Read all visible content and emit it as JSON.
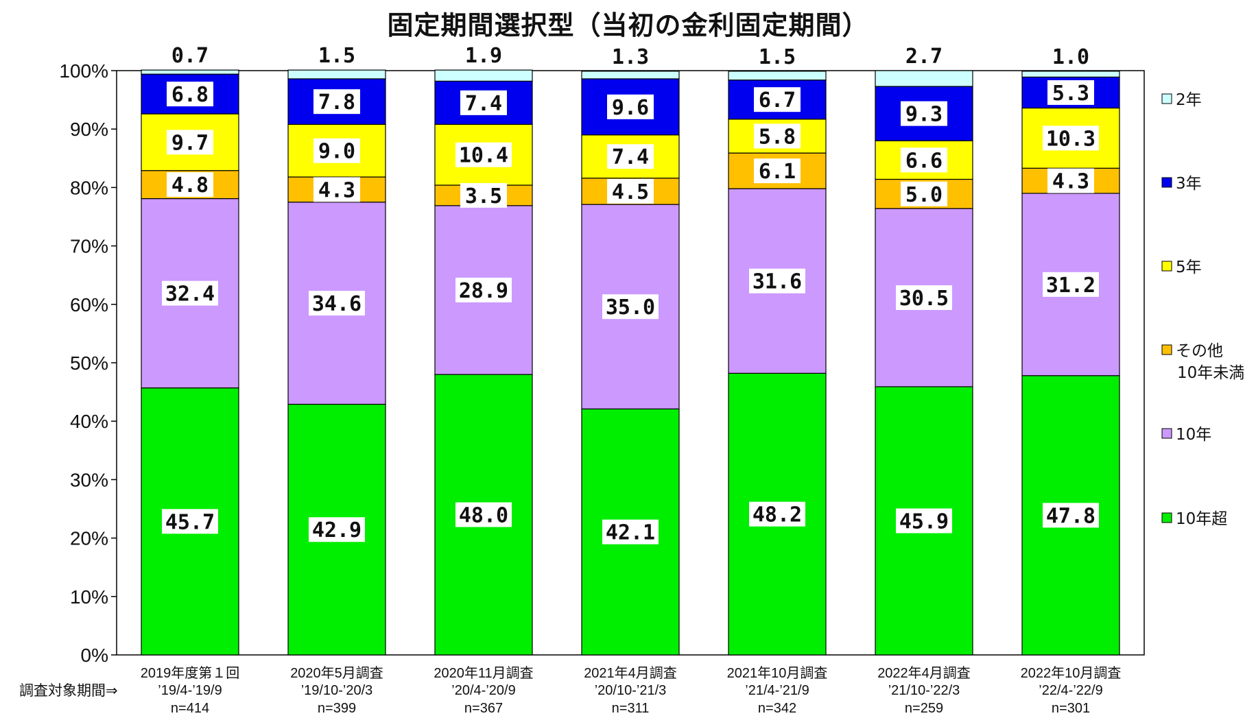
{
  "chart_data": {
    "type": "bar",
    "stacked": true,
    "title": "固定期間選択型（当初の金利固定期間）",
    "period_caption": "調査対象期間⇒",
    "y_tick_labels": [
      "0%",
      "10%",
      "20%",
      "30%",
      "40%",
      "50%",
      "60%",
      "70%",
      "80%",
      "90%",
      "100%"
    ],
    "ylim": [
      0,
      100
    ],
    "grid": false,
    "legend_position": "right",
    "categories": [
      {
        "name": "2019年度第１回",
        "period": "’19/4-’19/9",
        "n": "n=414"
      },
      {
        "name": "2020年5月調査",
        "period": "’19/10-’20/3",
        "n": "n=399"
      },
      {
        "name": "2020年11月調査",
        "period": "’20/4-’20/9",
        "n": "n=367"
      },
      {
        "name": "2021年4月調査",
        "period": "’20/10-’21/3",
        "n": "n=311"
      },
      {
        "name": "2021年10月調査",
        "period": "’21/4-’21/9",
        "n": "n=342"
      },
      {
        "name": "2022年4月調査",
        "period": "’21/10-’22/3",
        "n": "n=259"
      },
      {
        "name": "2022年10月調査",
        "period": "’22/4-’22/9",
        "n": "n=301"
      }
    ],
    "series": [
      {
        "name": "10年超",
        "key": "over10",
        "color": "#00ee00",
        "values": [
          45.7,
          42.9,
          48.0,
          42.1,
          48.2,
          45.9,
          47.8
        ],
        "labels": [
          "45.7",
          "42.9",
          "48.0",
          "42.1",
          "48.2",
          "45.9",
          "47.8"
        ]
      },
      {
        "name": "10年",
        "key": "ten",
        "color": "#cc99ff",
        "values": [
          32.4,
          34.6,
          28.9,
          35.0,
          31.6,
          30.5,
          31.2
        ],
        "labels": [
          "32.4",
          "34.6",
          "28.9",
          "35.0",
          "31.6",
          "30.5",
          "31.2"
        ]
      },
      {
        "name": "その他\n10年未満",
        "key": "other",
        "color": "#ffc000",
        "values": [
          4.8,
          4.3,
          3.5,
          4.5,
          6.1,
          5.0,
          4.3
        ],
        "labels": [
          "4.8",
          "4.3",
          "3.5",
          "4.5",
          "6.1",
          "5.0",
          "4.3"
        ]
      },
      {
        "name": "5年",
        "key": "five",
        "color": "#ffff00",
        "values": [
          9.7,
          9.0,
          10.4,
          7.4,
          5.8,
          6.6,
          10.3
        ],
        "labels": [
          "9.7",
          "9.0",
          "10.4",
          "7.4",
          "5.8",
          "6.6",
          "10.3"
        ]
      },
      {
        "name": "3年",
        "key": "three",
        "color": "#0000ee",
        "values": [
          6.8,
          7.8,
          7.4,
          9.6,
          6.7,
          9.3,
          5.3
        ],
        "labels": [
          "6.8",
          "7.8",
          "7.4",
          "9.6",
          "6.7",
          "9.3",
          "5.3"
        ]
      },
      {
        "name": "2年",
        "key": "two",
        "color": "#ccffff",
        "values": [
          0.7,
          1.5,
          1.9,
          1.3,
          1.5,
          2.7,
          1.0
        ],
        "labels": [
          "0.7",
          "1.5",
          "1.9",
          "1.3",
          "1.5",
          "2.7",
          "1.0"
        ]
      }
    ],
    "legend_order": [
      "2年",
      "3年",
      "5年",
      "その他\n10年未満",
      "10年",
      "10年超"
    ]
  }
}
